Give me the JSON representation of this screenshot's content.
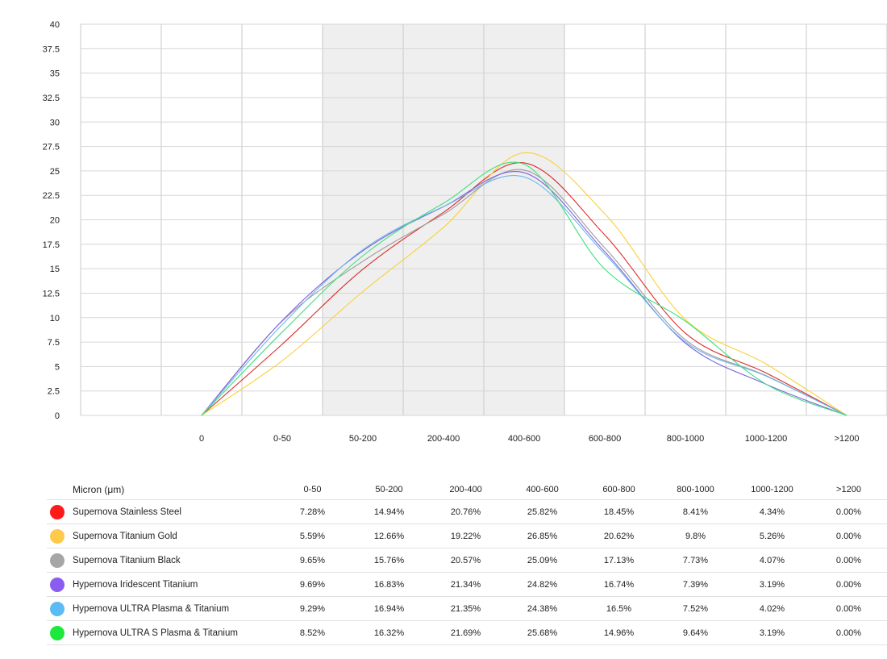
{
  "chart_data": {
    "type": "line",
    "x": [
      "0",
      "0-50",
      "50-200",
      "200-400",
      "400-600",
      "600-800",
      "800-1000",
      "1000-1200",
      ">1200"
    ],
    "y_ticks": [
      "0",
      "2.5",
      "5",
      "7.5",
      "10",
      "12.5",
      "15",
      "17.5",
      "20",
      "22.5",
      "25",
      "27.5",
      "30",
      "32.5",
      "35",
      "37.5",
      "40"
    ],
    "ylim": [
      0,
      40
    ],
    "grid": true,
    "shaded_categories": [
      "50-200",
      "200-400",
      "400-600"
    ],
    "series": [
      {
        "name": "Supernova Stainless Steel",
        "color": "#dd2a2a",
        "values": [
          0,
          7.28,
          14.94,
          20.76,
          25.82,
          18.45,
          8.41,
          4.34,
          0
        ]
      },
      {
        "name": "Supernova Titanium Gold",
        "color": "#f7d23a",
        "values": [
          0,
          5.59,
          12.66,
          19.22,
          26.85,
          20.62,
          9.8,
          5.26,
          0
        ]
      },
      {
        "name": "Supernova Titanium Black",
        "color": "#9e9e9e",
        "values": [
          0,
          9.65,
          15.76,
          20.57,
          25.09,
          17.13,
          7.73,
          4.07,
          0
        ]
      },
      {
        "name": "Hypernova Iridescent Titanium",
        "color": "#7b61e0",
        "values": [
          0,
          9.69,
          16.83,
          21.34,
          24.82,
          16.74,
          7.39,
          3.19,
          0
        ]
      },
      {
        "name": "Hypernova ULTRA Plasma & Titanium",
        "color": "#6fb5ec",
        "values": [
          0,
          9.29,
          16.94,
          21.35,
          24.38,
          16.5,
          7.52,
          4.02,
          0
        ]
      },
      {
        "name": "Hypernova ULTRA S Plasma & Titanium",
        "color": "#3fe07a",
        "values": [
          0,
          8.52,
          16.32,
          21.69,
          25.68,
          14.96,
          9.64,
          3.19,
          0
        ]
      }
    ]
  },
  "table": {
    "header_label": "Micron (μm)",
    "columns": [
      "0-50",
      "50-200",
      "200-400",
      "400-600",
      "600-800",
      "800-1000",
      "1000-1200",
      ">1200"
    ],
    "rows": [
      {
        "name": "Supernova Stainless Steel",
        "swatch": "#ff1a1a",
        "cells": [
          "7.28%",
          "14.94%",
          "20.76%",
          "25.82%",
          "18.45%",
          "8.41%",
          "4.34%",
          "0.00%"
        ]
      },
      {
        "name": "Supernova Titanium Gold",
        "swatch": "#ffc94a",
        "cells": [
          "5.59%",
          "12.66%",
          "19.22%",
          "26.85%",
          "20.62%",
          "9.8%",
          "5.26%",
          "0.00%"
        ]
      },
      {
        "name": "Supernova Titanium Black",
        "swatch": "#a6a6a6",
        "cells": [
          "9.65%",
          "15.76%",
          "20.57%",
          "25.09%",
          "17.13%",
          "7.73%",
          "4.07%",
          "0.00%"
        ]
      },
      {
        "name": "Hypernova Iridescent Titanium",
        "swatch": "#8b5cf0",
        "cells": [
          "9.69%",
          "16.83%",
          "21.34%",
          "24.82%",
          "16.74%",
          "7.39%",
          "3.19%",
          "0.00%"
        ]
      },
      {
        "name": "Hypernova ULTRA Plasma & Titanium",
        "swatch": "#5bbcf5",
        "cells": [
          "9.29%",
          "16.94%",
          "21.35%",
          "24.38%",
          "16.5%",
          "7.52%",
          "4.02%",
          "0.00%"
        ]
      },
      {
        "name": "Hypernova ULTRA S Plasma & Titanium",
        "swatch": "#1ee83c",
        "cells": [
          "8.52%",
          "16.32%",
          "21.69%",
          "25.68%",
          "14.96%",
          "9.64%",
          "3.19%",
          "0.00%"
        ]
      }
    ]
  }
}
